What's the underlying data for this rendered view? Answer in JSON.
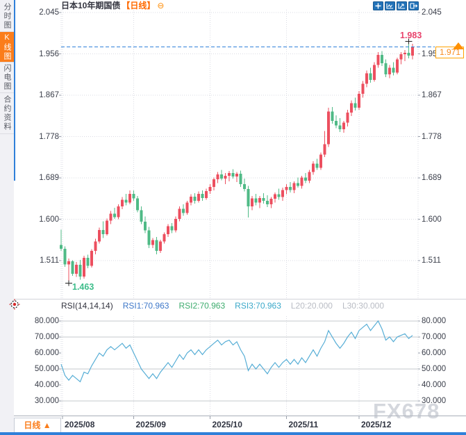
{
  "header": {
    "title": "日本10年期国债",
    "period_label": "【日线】",
    "collapse_icon": "⊖"
  },
  "sidebar": {
    "tabs": [
      {
        "label": "分时图",
        "active": false
      },
      {
        "label": "K线图",
        "active": true
      },
      {
        "label": "闪电图",
        "active": false
      },
      {
        "label": "合约资料",
        "active": false
      }
    ]
  },
  "rsi_header": {
    "name": "RSI(14,14,14)",
    "rsi1": "RSI1:70.963",
    "rsi2": "RSI2:70.963",
    "rsi3": "RSI3:70.963",
    "l20": "L20:20.000",
    "l30": "L30:30.000"
  },
  "annotations": {
    "high": "1.983",
    "low": "1.463",
    "last_price": "1.971"
  },
  "bottom": {
    "period_label": "日线 ▲",
    "x_labels": [
      "2025/08",
      "2025/09",
      "2025/10",
      "2025/11",
      "2025/12"
    ]
  },
  "watermark": "FX678",
  "colors": {
    "up": "#ec4f5f",
    "down": "#4fba86",
    "rsi_line": "#57aed6",
    "dashed_line": "#2f80d9",
    "grid_dotted": "#dadbe3",
    "grid_solid": "#c6c8ce",
    "tick": "#9aa0ac",
    "marker": "#222222",
    "accent_orange": "#fb7d1b"
  },
  "chart_data": {
    "type": "candlestick",
    "title": "日本10年期国债 日线",
    "x_categories_months": [
      "2025/08",
      "2025/09",
      "2025/10",
      "2025/11",
      "2025/12"
    ],
    "panels": [
      {
        "id": "price",
        "type": "candlestick",
        "ylim": [
          1.429,
          2.051
        ],
        "yticks": [
          {
            "v": 2.045,
            "label": "2.045"
          },
          {
            "v": 1.956,
            "label": "1.956"
          },
          {
            "v": 1.867,
            "label": "1.867"
          },
          {
            "v": 1.778,
            "label": "1.778"
          },
          {
            "v": 1.689,
            "label": "1.689"
          },
          {
            "v": 1.6,
            "label": "1.600"
          },
          {
            "v": 1.511,
            "label": "1.511"
          }
        ],
        "last_price": 1.971,
        "high_marker": {
          "index": 91,
          "value": 1.983
        },
        "low_marker": {
          "index": 2,
          "value": 1.463
        },
        "candles": [
          [
            1.545,
            1.578,
            1.532,
            1.537
          ],
          [
            1.537,
            1.542,
            1.498,
            1.503
          ],
          [
            1.503,
            1.516,
            1.463,
            1.51
          ],
          [
            1.51,
            1.512,
            1.478,
            1.483
          ],
          [
            1.483,
            1.508,
            1.476,
            1.502
          ],
          [
            1.502,
            1.513,
            1.47,
            1.477
          ],
          [
            1.477,
            1.522,
            1.472,
            1.517
          ],
          [
            1.517,
            1.524,
            1.495,
            1.5
          ],
          [
            1.5,
            1.536,
            1.496,
            1.532
          ],
          [
            1.532,
            1.558,
            1.525,
            1.552
          ],
          [
            1.552,
            1.582,
            1.548,
            1.577
          ],
          [
            1.577,
            1.596,
            1.56,
            1.568
          ],
          [
            1.568,
            1.602,
            1.565,
            1.597
          ],
          [
            1.597,
            1.618,
            1.59,
            1.612
          ],
          [
            1.612,
            1.625,
            1.601,
            1.605
          ],
          [
            1.605,
            1.632,
            1.6,
            1.628
          ],
          [
            1.628,
            1.648,
            1.622,
            1.642
          ],
          [
            1.642,
            1.655,
            1.63,
            1.636
          ],
          [
            1.636,
            1.662,
            1.632,
            1.655
          ],
          [
            1.655,
            1.662,
            1.64,
            1.645
          ],
          [
            1.645,
            1.65,
            1.615,
            1.62
          ],
          [
            1.62,
            1.628,
            1.59,
            1.595
          ],
          [
            1.595,
            1.606,
            1.57,
            1.576
          ],
          [
            1.576,
            1.584,
            1.538,
            1.545
          ],
          [
            1.545,
            1.56,
            1.538,
            1.555
          ],
          [
            1.555,
            1.562,
            1.525,
            1.532
          ],
          [
            1.532,
            1.556,
            1.528,
            1.552
          ],
          [
            1.552,
            1.572,
            1.548,
            1.568
          ],
          [
            1.568,
            1.59,
            1.562,
            1.585
          ],
          [
            1.585,
            1.592,
            1.57,
            1.576
          ],
          [
            1.576,
            1.606,
            1.572,
            1.601
          ],
          [
            1.601,
            1.628,
            1.596,
            1.623
          ],
          [
            1.623,
            1.632,
            1.608,
            1.614
          ],
          [
            1.614,
            1.64,
            1.61,
            1.636
          ],
          [
            1.636,
            1.654,
            1.63,
            1.649
          ],
          [
            1.649,
            1.656,
            1.634,
            1.64
          ],
          [
            1.64,
            1.66,
            1.636,
            1.655
          ],
          [
            1.655,
            1.662,
            1.64,
            1.646
          ],
          [
            1.646,
            1.666,
            1.642,
            1.661
          ],
          [
            1.661,
            1.676,
            1.655,
            1.67
          ],
          [
            1.67,
            1.69,
            1.662,
            1.686
          ],
          [
            1.686,
            1.702,
            1.678,
            1.697
          ],
          [
            1.697,
            1.706,
            1.684,
            1.688
          ],
          [
            1.688,
            1.7,
            1.676,
            1.694
          ],
          [
            1.694,
            1.704,
            1.682,
            1.7
          ],
          [
            1.7,
            1.708,
            1.688,
            1.692
          ],
          [
            1.692,
            1.702,
            1.68,
            1.698
          ],
          [
            1.698,
            1.705,
            1.67,
            1.676
          ],
          [
            1.676,
            1.688,
            1.66,
            1.665
          ],
          [
            1.665,
            1.672,
            1.604,
            1.628
          ],
          [
            1.628,
            1.65,
            1.62,
            1.645
          ],
          [
            1.645,
            1.655,
            1.63,
            1.636
          ],
          [
            1.636,
            1.65,
            1.624,
            1.646
          ],
          [
            1.646,
            1.656,
            1.634,
            1.64
          ],
          [
            1.64,
            1.652,
            1.626,
            1.632
          ],
          [
            1.632,
            1.648,
            1.624,
            1.644
          ],
          [
            1.644,
            1.658,
            1.636,
            1.654
          ],
          [
            1.654,
            1.666,
            1.642,
            1.648
          ],
          [
            1.648,
            1.668,
            1.64,
            1.663
          ],
          [
            1.663,
            1.676,
            1.654,
            1.67
          ],
          [
            1.67,
            1.68,
            1.658,
            1.663
          ],
          [
            1.663,
            1.682,
            1.656,
            1.678
          ],
          [
            1.678,
            1.69,
            1.668,
            1.672
          ],
          [
            1.672,
            1.694,
            1.666,
            1.69
          ],
          [
            1.69,
            1.7,
            1.678,
            1.683
          ],
          [
            1.683,
            1.706,
            1.678,
            1.702
          ],
          [
            1.702,
            1.725,
            1.696,
            1.72
          ],
          [
            1.72,
            1.73,
            1.706,
            1.711
          ],
          [
            1.711,
            1.744,
            1.706,
            1.739
          ],
          [
            1.739,
            1.79,
            1.734,
            1.762
          ],
          [
            1.762,
            1.84,
            1.756,
            1.832
          ],
          [
            1.832,
            1.842,
            1.806,
            1.812
          ],
          [
            1.812,
            1.824,
            1.796,
            1.802
          ],
          [
            1.802,
            1.818,
            1.788,
            1.794
          ],
          [
            1.794,
            1.812,
            1.786,
            1.808
          ],
          [
            1.808,
            1.836,
            1.8,
            1.83
          ],
          [
            1.83,
            1.856,
            1.822,
            1.85
          ],
          [
            1.85,
            1.862,
            1.834,
            1.84
          ],
          [
            1.84,
            1.876,
            1.836,
            1.87
          ],
          [
            1.87,
            1.898,
            1.862,
            1.892
          ],
          [
            1.892,
            1.92,
            1.884,
            1.914
          ],
          [
            1.914,
            1.926,
            1.894,
            1.9
          ],
          [
            1.9,
            1.938,
            1.896,
            1.932
          ],
          [
            1.932,
            1.96,
            1.926,
            1.954
          ],
          [
            1.954,
            1.962,
            1.93,
            1.936
          ],
          [
            1.936,
            1.944,
            1.906,
            1.912
          ],
          [
            1.912,
            1.932,
            1.904,
            1.926
          ],
          [
            1.926,
            1.938,
            1.91,
            1.916
          ],
          [
            1.916,
            1.948,
            1.912,
            1.944
          ],
          [
            1.944,
            1.96,
            1.934,
            1.955
          ],
          [
            1.955,
            1.964,
            1.94,
            1.958
          ],
          [
            1.958,
            1.983,
            1.946,
            1.952
          ],
          [
            1.952,
            1.978,
            1.944,
            1.971
          ]
        ]
      },
      {
        "id": "rsi",
        "type": "line",
        "ylim": [
          20.9,
          83.0
        ],
        "yticks": [
          {
            "v": 80,
            "label": "80.000"
          },
          {
            "v": 70,
            "label": "70.000"
          },
          {
            "v": 60,
            "label": "60.000"
          },
          {
            "v": 50,
            "label": "50.000"
          },
          {
            "v": 40,
            "label": "40.000"
          },
          {
            "v": 30,
            "label": "30.000"
          }
        ],
        "solid_gridlines": [
          80,
          70,
          50,
          30
        ],
        "values": [
          53,
          46,
          43,
          46,
          44,
          42,
          48,
          47,
          52,
          56,
          60,
          58,
          62,
          64,
          62,
          64,
          66,
          63,
          65,
          60,
          55,
          50,
          47,
          44,
          47,
          44,
          48,
          51,
          54,
          51,
          55,
          59,
          56,
          60,
          62,
          59,
          62,
          59,
          62,
          64,
          66,
          68,
          65,
          67,
          68,
          65,
          67,
          62,
          58,
          49,
          53,
          50,
          53,
          50,
          47,
          51,
          54,
          51,
          54,
          56,
          53,
          56,
          53,
          57,
          54,
          58,
          62,
          58,
          63,
          67,
          74,
          70,
          66,
          63,
          66,
          70,
          73,
          69,
          74,
          76,
          78,
          74,
          77,
          80,
          75,
          68,
          70,
          67,
          70,
          71,
          72,
          69,
          70.963
        ]
      }
    ]
  }
}
